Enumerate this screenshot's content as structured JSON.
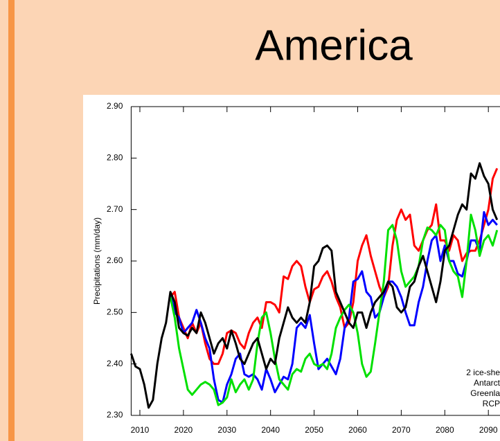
{
  "chart_data": {
    "type": "line",
    "title": "America",
    "ylabel": "Precipitations (mm/day)",
    "annotations": [
      "2 ice-she",
      "Antarct",
      "Greenla",
      "RCP"
    ],
    "xlim": [
      2008,
      2100
    ],
    "xticks": [
      2010,
      2020,
      2030,
      2040,
      2050,
      2060,
      2070,
      2080,
      2090
    ],
    "ylim": [
      2.3,
      2.9
    ],
    "yticks": [
      {
        "value": 2.3,
        "label": "2.30"
      },
      {
        "value": 2.4,
        "label": "2.40"
      },
      {
        "value": 2.5,
        "label": "2.50"
      },
      {
        "value": 2.6,
        "label": "2.60"
      },
      {
        "value": 2.7,
        "label": "2.70"
      },
      {
        "value": 2.8,
        "label": "2.80"
      },
      {
        "value": 2.9,
        "label": "2.90"
      }
    ],
    "x": [
      2008,
      2009,
      2010,
      2011,
      2012,
      2013,
      2014,
      2015,
      2016,
      2017,
      2018,
      2019,
      2020,
      2021,
      2022,
      2023,
      2024,
      2025,
      2026,
      2027,
      2028,
      2029,
      2030,
      2031,
      2032,
      2033,
      2034,
      2035,
      2036,
      2037,
      2038,
      2039,
      2040,
      2041,
      2042,
      2043,
      2044,
      2045,
      2046,
      2047,
      2048,
      2049,
      2050,
      2051,
      2052,
      2053,
      2054,
      2055,
      2056,
      2057,
      2058,
      2059,
      2060,
      2061,
      2062,
      2063,
      2064,
      2065,
      2066,
      2067,
      2068,
      2069,
      2070,
      2071,
      2072,
      2073,
      2074,
      2075,
      2076,
      2077,
      2078,
      2079,
      2080,
      2081,
      2082,
      2083,
      2084,
      2085,
      2086,
      2087,
      2088,
      2089,
      2090,
      2091,
      2092
    ],
    "series": [
      {
        "color": "#ff0000",
        "values": [
          null,
          null,
          null,
          null,
          null,
          null,
          null,
          null,
          null,
          2.53,
          2.54,
          2.49,
          2.47,
          2.45,
          2.48,
          2.46,
          2.48,
          2.44,
          2.41,
          2.4,
          2.4,
          2.42,
          2.46,
          2.465,
          2.46,
          2.44,
          2.43,
          2.46,
          2.48,
          2.49,
          2.47,
          2.52,
          2.52,
          2.515,
          2.5,
          2.57,
          2.565,
          2.59,
          2.6,
          2.59,
          2.55,
          2.52,
          2.545,
          2.55,
          2.57,
          2.58,
          2.56,
          2.53,
          2.51,
          2.47,
          2.48,
          2.52,
          2.6,
          2.63,
          2.65,
          2.61,
          2.58,
          2.55,
          2.53,
          2.55,
          2.63,
          2.68,
          2.7,
          2.68,
          2.69,
          2.63,
          2.62,
          2.64,
          2.66,
          2.67,
          2.71,
          2.64,
          2.64,
          2.62,
          2.65,
          2.64,
          2.6,
          2.615,
          2.62,
          2.62,
          2.64,
          2.67,
          2.7,
          2.76,
          2.78
        ]
      },
      {
        "color": "#0000ff",
        "values": [
          null,
          null,
          null,
          null,
          null,
          null,
          null,
          null,
          null,
          2.54,
          2.5,
          2.49,
          2.46,
          2.47,
          2.48,
          2.505,
          2.48,
          2.45,
          2.43,
          2.37,
          2.33,
          2.325,
          2.36,
          2.38,
          2.41,
          2.42,
          2.38,
          2.375,
          2.38,
          2.37,
          2.35,
          2.39,
          2.37,
          2.345,
          2.36,
          2.375,
          2.37,
          2.4,
          2.47,
          2.48,
          2.47,
          2.495,
          2.44,
          2.39,
          2.4,
          2.41,
          2.395,
          2.38,
          2.41,
          2.47,
          2.49,
          2.56,
          2.565,
          2.58,
          2.54,
          2.53,
          2.49,
          2.5,
          2.53,
          2.56,
          2.56,
          2.55,
          2.53,
          2.5,
          2.475,
          2.475,
          2.52,
          2.55,
          2.6,
          2.64,
          2.65,
          2.6,
          2.63,
          2.6,
          2.6,
          2.575,
          2.57,
          2.6,
          2.64,
          2.64,
          2.62,
          2.695,
          2.67,
          2.68,
          2.67
        ]
      },
      {
        "color": "#00e000",
        "values": [
          null,
          null,
          null,
          null,
          null,
          null,
          null,
          null,
          null,
          2.53,
          2.49,
          2.43,
          2.39,
          2.35,
          2.34,
          2.35,
          2.36,
          2.365,
          2.36,
          2.35,
          2.32,
          2.325,
          2.335,
          2.37,
          2.345,
          2.36,
          2.37,
          2.35,
          2.37,
          2.44,
          2.49,
          2.5,
          2.46,
          2.41,
          2.37,
          2.36,
          2.35,
          2.38,
          2.39,
          2.385,
          2.41,
          2.42,
          2.4,
          2.395,
          2.4,
          2.39,
          2.42,
          2.47,
          2.49,
          2.505,
          2.515,
          2.5,
          2.46,
          2.4,
          2.375,
          2.385,
          2.44,
          2.5,
          2.56,
          2.66,
          2.67,
          2.64,
          2.58,
          2.55,
          2.56,
          2.57,
          2.59,
          2.64,
          2.665,
          2.66,
          2.65,
          2.67,
          2.66,
          2.6,
          2.58,
          2.57,
          2.53,
          2.6,
          2.69,
          2.66,
          2.61,
          2.64,
          2.65,
          2.63,
          2.66
        ]
      },
      {
        "color": "#000000",
        "values": [
          2.42,
          2.395,
          2.39,
          2.36,
          2.315,
          2.33,
          2.4,
          2.45,
          2.48,
          2.54,
          2.52,
          2.47,
          2.46,
          2.455,
          2.47,
          2.46,
          2.5,
          2.48,
          2.45,
          2.42,
          2.44,
          2.45,
          2.43,
          2.465,
          2.44,
          2.41,
          2.4,
          2.42,
          2.44,
          2.45,
          2.42,
          2.39,
          2.41,
          2.4,
          2.45,
          2.48,
          2.51,
          2.49,
          2.48,
          2.49,
          2.48,
          2.52,
          2.59,
          2.6,
          2.625,
          2.63,
          2.62,
          2.54,
          2.52,
          2.5,
          2.48,
          2.47,
          2.5,
          2.5,
          2.47,
          2.5,
          2.52,
          2.53,
          2.54,
          2.56,
          2.55,
          2.51,
          2.5,
          2.51,
          2.55,
          2.56,
          2.59,
          2.61,
          2.58,
          2.55,
          2.52,
          2.56,
          2.62,
          2.63,
          2.66,
          2.69,
          2.71,
          2.7,
          2.77,
          2.76,
          2.79,
          2.765,
          2.75,
          2.7,
          2.68
        ]
      }
    ]
  }
}
